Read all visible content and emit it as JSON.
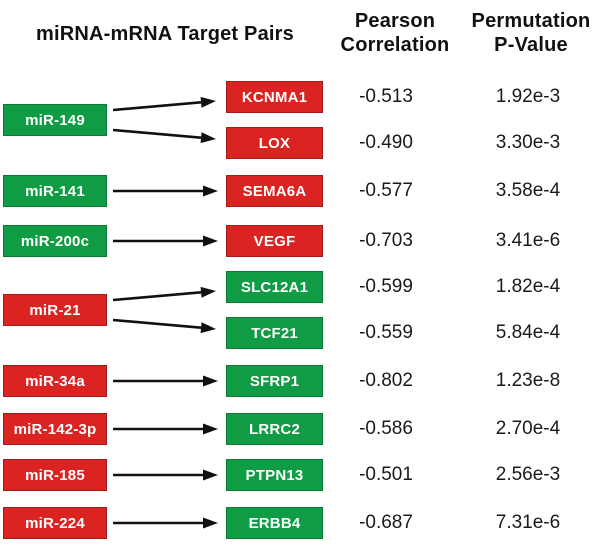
{
  "figure": {
    "columns": {
      "pairs": "miRNA-mRNA Target Pairs",
      "pearson": [
        "Pearson",
        "Correlation"
      ],
      "permutation": [
        "Permutation",
        "P-Value"
      ]
    }
  },
  "colors": {
    "green": "#109C44",
    "green_border": "#0C7A35",
    "red": "#DB2422",
    "red_border": "#A01C19",
    "arrow": "#111111",
    "text": "#1a1a1a"
  },
  "groups": [
    {
      "mirna": "miR-149",
      "mirna_color": "green",
      "targets": [
        {
          "gene": "KCNMA1",
          "color": "red",
          "correlation": "-0.513",
          "p_value": "1.92e-3"
        },
        {
          "gene": "LOX",
          "color": "red",
          "correlation": "-0.490",
          "p_value": "3.30e-3"
        }
      ]
    },
    {
      "mirna": "miR-141",
      "mirna_color": "green",
      "targets": [
        {
          "gene": "SEMA6A",
          "color": "red",
          "correlation": "-0.577",
          "p_value": "3.58e-4"
        }
      ]
    },
    {
      "mirna": "miR-200c",
      "mirna_color": "green",
      "targets": [
        {
          "gene": "VEGF",
          "color": "red",
          "correlation": "-0.703",
          "p_value": "3.41e-6"
        }
      ]
    },
    {
      "mirna": "miR-21",
      "mirna_color": "red",
      "targets": [
        {
          "gene": "SLC12A1",
          "color": "green",
          "correlation": "-0.599",
          "p_value": "1.82e-4"
        },
        {
          "gene": "TCF21",
          "color": "green",
          "correlation": "-0.559",
          "p_value": "5.84e-4"
        }
      ]
    },
    {
      "mirna": "miR-34a",
      "mirna_color": "red",
      "targets": [
        {
          "gene": "SFRP1",
          "color": "green",
          "correlation": "-0.802",
          "p_value": "1.23e-8"
        }
      ]
    },
    {
      "mirna": "miR-142-3p",
      "mirna_color": "red",
      "targets": [
        {
          "gene": "LRRC2",
          "color": "green",
          "correlation": "-0.586",
          "p_value": "2.70e-4"
        }
      ]
    },
    {
      "mirna": "miR-185",
      "mirna_color": "red",
      "targets": [
        {
          "gene": "PTPN13",
          "color": "green",
          "correlation": "-0.501",
          "p_value": "2.56e-3"
        }
      ]
    },
    {
      "mirna": "miR-224",
      "mirna_color": "red",
      "targets": [
        {
          "gene": "ERBB4",
          "color": "green",
          "correlation": "-0.687",
          "p_value": "7.31e-6"
        }
      ]
    }
  ]
}
